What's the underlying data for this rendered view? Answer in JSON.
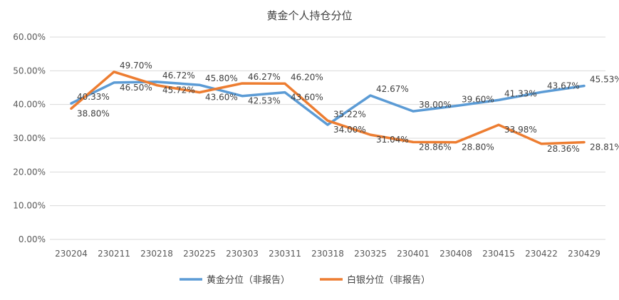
{
  "chart_data": {
    "type": "line",
    "title": "黄金个人持仓分位",
    "categories": [
      "230204",
      "230211",
      "230218",
      "230225",
      "230303",
      "230311",
      "230318",
      "230325",
      "230401",
      "230408",
      "230415",
      "230422",
      "230429"
    ],
    "ylim": [
      0,
      60
    ],
    "y_ticks": [
      "0.00%",
      "10.00%",
      "20.00%",
      "30.00%",
      "40.00%",
      "50.00%",
      "60.00%"
    ],
    "y_tick_values": [
      0,
      10,
      20,
      30,
      40,
      50,
      60
    ],
    "grid": true,
    "legend_position": "bottom",
    "series": [
      {
        "name": "黄金分位（非报告）",
        "color": "#5b9bd5",
        "values": [
          40.33,
          46.5,
          46.72,
          45.8,
          42.53,
          43.6,
          34.0,
          42.67,
          38.0,
          39.6,
          41.33,
          43.67,
          45.53
        ],
        "labels": [
          "40.33%",
          "46.50%",
          "46.72%",
          "45.80%",
          "42.53%",
          "43.60%",
          "34.00%",
          "42.67%",
          "38.00%",
          "39.60%",
          "41.33%",
          "43.67%",
          "45.53%"
        ]
      },
      {
        "name": "白银分位（非报告）",
        "color": "#ed7d31",
        "values": [
          38.8,
          49.7,
          45.72,
          43.6,
          46.27,
          46.2,
          35.22,
          31.04,
          28.86,
          28.8,
          33.98,
          28.36,
          28.81
        ],
        "labels": [
          "38.80%",
          "49.70%",
          "45.72%",
          "43.60%",
          "46.27%",
          "46.20%",
          "35.22%",
          "31.04%",
          "28.86%",
          "28.80%",
          "33.98%",
          "28.36%",
          "28.81%"
        ]
      }
    ]
  }
}
